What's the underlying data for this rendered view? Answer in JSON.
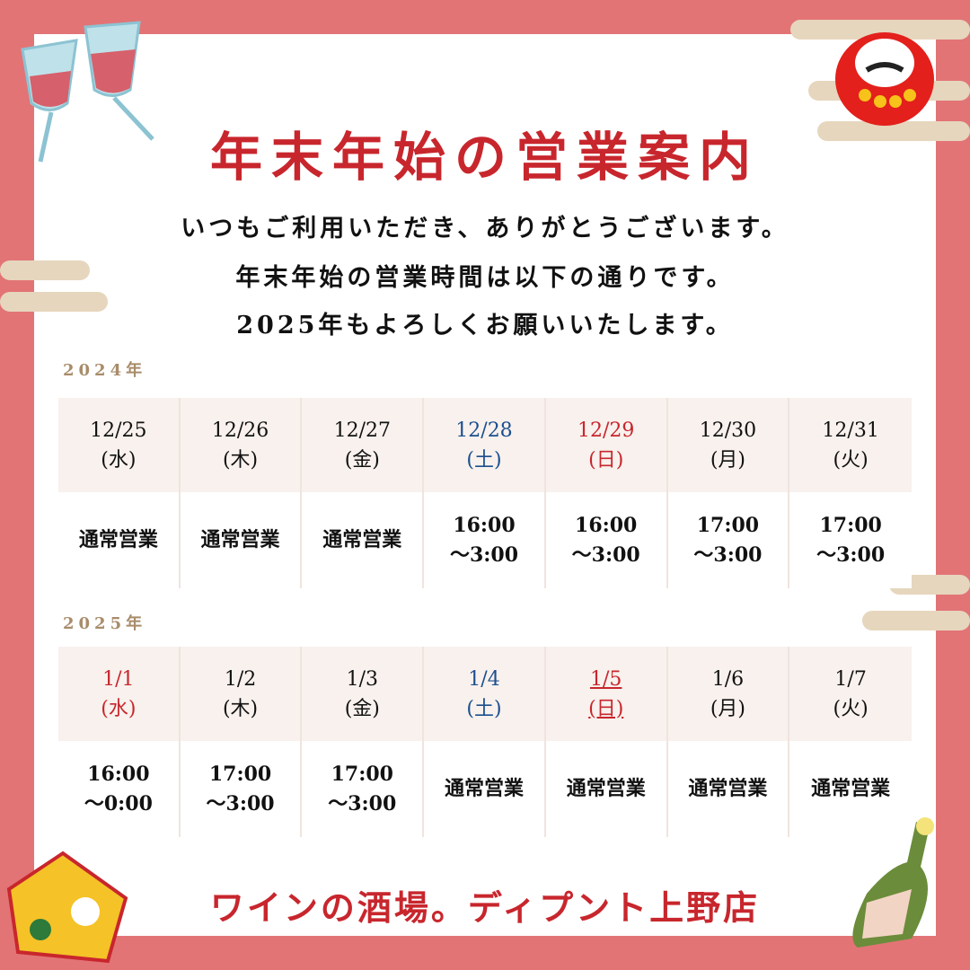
{
  "title": "年末年始の営業案内",
  "message": [
    "いつもご利用いただき、ありがとうございます。",
    "年末年始の営業時間は以下の通りです。",
    "2025年もよろしくお願いいたします。"
  ],
  "colors": {
    "frame": "#e27476",
    "accent_red": "#c8262d",
    "saturday_blue": "#1c4f8f",
    "header_bg": "#f8f1ed",
    "year_label": "#a88c6a"
  },
  "tables": [
    {
      "year": "2024年",
      "days": [
        {
          "date": "12/25",
          "weekday": "(水)",
          "hours": [
            "通常営業"
          ],
          "color": ""
        },
        {
          "date": "12/26",
          "weekday": "(木)",
          "hours": [
            "通常営業"
          ],
          "color": ""
        },
        {
          "date": "12/27",
          "weekday": "(金)",
          "hours": [
            "通常営業"
          ],
          "color": ""
        },
        {
          "date": "12/28",
          "weekday": "(土)",
          "hours": [
            "16:00",
            "～3:00"
          ],
          "color": "blue"
        },
        {
          "date": "12/29",
          "weekday": "(日)",
          "hours": [
            "16:00",
            "～3:00"
          ],
          "color": "red"
        },
        {
          "date": "12/30",
          "weekday": "(月)",
          "hours": [
            "17:00",
            "～3:00"
          ],
          "color": ""
        },
        {
          "date": "12/31",
          "weekday": "(火)",
          "hours": [
            "17:00",
            "～3:00"
          ],
          "color": ""
        }
      ]
    },
    {
      "year": "2025年",
      "days": [
        {
          "date": "1/1",
          "weekday": "(水)",
          "hours": [
            "16:00",
            "～0:00"
          ],
          "color": "red"
        },
        {
          "date": "1/2",
          "weekday": "(木)",
          "hours": [
            "17:00",
            "～3:00"
          ],
          "color": ""
        },
        {
          "date": "1/3",
          "weekday": "(金)",
          "hours": [
            "17:00",
            "～3:00"
          ],
          "color": ""
        },
        {
          "date": "1/4",
          "weekday": "(土)",
          "hours": [
            "通常営業"
          ],
          "color": "blue"
        },
        {
          "date": "1/5",
          "weekday": "(日)",
          "hours": [
            "通常営業"
          ],
          "color": "red ul"
        },
        {
          "date": "1/6",
          "weekday": "(月)",
          "hours": [
            "通常営業"
          ],
          "color": ""
        },
        {
          "date": "1/7",
          "weekday": "(火)",
          "hours": [
            "通常営業"
          ],
          "color": ""
        }
      ]
    }
  ],
  "footer": "ワインの酒場。ディプント上野店",
  "icons": [
    "wine-glasses-icon",
    "daruma-icon",
    "ema-plaque-icon",
    "champagne-bottle-icon"
  ]
}
